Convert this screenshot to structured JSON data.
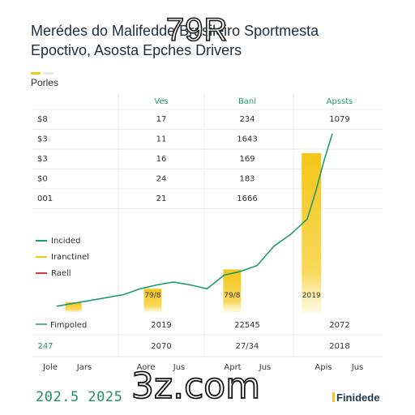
{
  "title_lines": [
    "Merédes do Malifedde Brasileiro Sportmesta",
    "Epoctivo, Asosta Epches Drivers"
  ],
  "overlay_text": "79R",
  "top_legend_label": "Porles",
  "watermark": "3z.com",
  "footer_left": "202.5  2025",
  "brand": "Finidede",
  "colors": {
    "green": "#1f9a6e",
    "yellow": "#f3c622",
    "red": "#d8343f",
    "grid": "#e9ecee"
  },
  "chart_data": {
    "type": "table",
    "table": {
      "headers": [
        "",
        "Ves",
        "Banl",
        "Apssts"
      ],
      "rows": [
        [
          "$8",
          "17",
          "234",
          "1079"
        ],
        [
          "$3",
          "11",
          "1643",
          ""
        ],
        [
          "$3",
          "16",
          "169",
          ""
        ],
        [
          "$0",
          "24",
          "183",
          ""
        ],
        [
          "001",
          "21",
          "1666",
          ""
        ]
      ]
    },
    "combo": {
      "type": "bar",
      "legend": [
        "Incided",
        "Iranctinel",
        "Raell"
      ],
      "legend_colors": [
        "#1f9a6e",
        "#f3c622",
        "#d8343f"
      ],
      "bars": [
        {
          "x": 0.2,
          "value": 5,
          "label": ""
        },
        {
          "x": 1.15,
          "value": 12,
          "label": "79/8"
        },
        {
          "x": 2.1,
          "value": 22,
          "label": "79/8"
        },
        {
          "x": 3.05,
          "value": 82,
          "label": "2019"
        }
      ],
      "line": {
        "x": [
          0,
          0.4,
          0.8,
          1.0,
          1.2,
          1.4,
          1.6,
          1.8,
          2.0,
          2.2,
          2.4,
          2.6,
          2.8,
          3.0,
          3.1,
          3.2,
          3.3
        ],
        "y": [
          3,
          6,
          9,
          12,
          14,
          15.5,
          14,
          12,
          19,
          21,
          24,
          34,
          40,
          48,
          62,
          78,
          92
        ]
      },
      "row_label": "Fimpoled",
      "row_values": [
        "2019",
        "22545",
        "2072"
      ],
      "row2_values": [
        "247",
        "2070",
        "27/34",
        "2018"
      ],
      "x_ticks": [
        "Jole",
        "Jars",
        "Aore",
        "Jus",
        "Aprt",
        "Jus",
        "Apis",
        "Jus"
      ]
    }
  }
}
